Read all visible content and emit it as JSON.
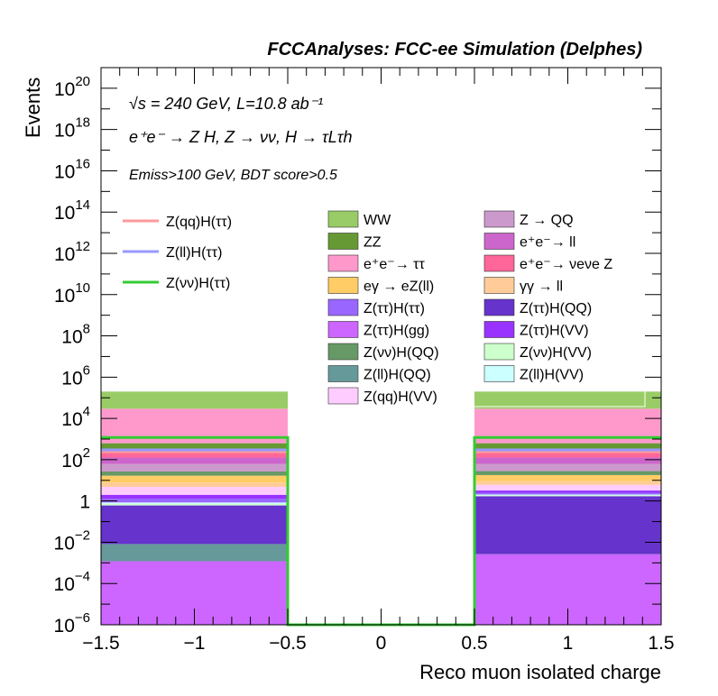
{
  "chart_data": {
    "type": "bar",
    "title": "FCCAnalyses: FCC-ee Simulation (Delphes)",
    "xlabel": "Reco muon isolated charge",
    "ylabel": "Events",
    "xlim": [
      -1.5,
      1.5
    ],
    "ylim": [
      1e-06,
      1e+21
    ],
    "yscale": "log",
    "x_ticks": [
      "−1.5",
      "−1",
      "−0.5",
      "0",
      "0.5",
      "1",
      "1.5"
    ],
    "y_ticks": [
      {
        "base": "10",
        "exp": "−6"
      },
      {
        "base": "10",
        "exp": "−4"
      },
      {
        "base": "10",
        "exp": "−2"
      },
      {
        "base": "1",
        "exp": ""
      },
      {
        "base": "10",
        "exp": "2"
      },
      {
        "base": "10",
        "exp": "4"
      },
      {
        "base": "10",
        "exp": "6"
      },
      {
        "base": "10",
        "exp": "8"
      },
      {
        "base": "10",
        "exp": "10"
      },
      {
        "base": "10",
        "exp": "12"
      },
      {
        "base": "10",
        "exp": "14"
      },
      {
        "base": "10",
        "exp": "16"
      },
      {
        "base": "10",
        "exp": "18"
      },
      {
        "base": "10",
        "exp": "20"
      }
    ],
    "annotations": {
      "line1": "√s = 240 GeV, L=10.8 ab⁻¹",
      "line2": "e⁺e⁻ → Z H, Z → νν, H → τLτh",
      "line3": "Emiss>100 GeV, BDT score>0.5"
    },
    "bins": [
      {
        "xlow": -1.5,
        "xhigh": -0.5
      },
      {
        "xlow": 0.5,
        "xhigh": 1.5
      }
    ],
    "stack": [
      {
        "name": "Z(ττ)H(gg)",
        "color": "#cc66ff",
        "values": [
          0.0012,
          0.0026
        ]
      },
      {
        "name": "Z(ll)H(QQ)",
        "color": "#669999",
        "values": [
          0.007,
          5e-05
        ]
      },
      {
        "name": "Z(ττ)H(QQ)",
        "color": "#6633cc",
        "values": [
          0.6,
          1.7
        ]
      },
      {
        "name": "Z(νν)H(VV)",
        "color": "#ccffcc",
        "values": [
          0.12,
          0.18
        ]
      },
      {
        "name": "Z(ll)H(VV)",
        "color": "#ccffff",
        "values": [
          0.12,
          0.18
        ]
      },
      {
        "name": "Z(ττ)H(ττ)",
        "color": "#9966ff",
        "values": [
          0.45,
          0.45
        ]
      },
      {
        "name": "Z(ττ)H(VV)",
        "color": "#9933ff",
        "values": [
          0.7,
          0.7
        ]
      },
      {
        "name": "Z(qq)H(VV)",
        "color": "#ffccff",
        "values": [
          2.8,
          2.8
        ]
      },
      {
        "name": "γγ → ll",
        "color": "#ffcc99",
        "values": [
          3.0,
          3.0
        ]
      },
      {
        "name": "eγ → eZ(ll)",
        "color": "#ffcc66",
        "values": [
          9.0,
          9.0
        ]
      },
      {
        "name": "Z(νν)H(QQ)",
        "color": "#669966",
        "values": [
          10.0,
          10.0
        ]
      },
      {
        "name": "Z → QQ",
        "color": "#cc99cc",
        "values": [
          35,
          35
        ]
      },
      {
        "name": "e⁺e⁻→ ll",
        "color": "#cc66cc",
        "values": [
          65,
          65
        ]
      },
      {
        "name": "e⁺e⁻→ νeνe Z",
        "color": "#ff6699",
        "values": [
          180,
          180
        ]
      },
      {
        "name": "ZZ",
        "color": "#669933",
        "values": [
          320,
          320
        ]
      },
      {
        "name": "e⁺e⁻→ ττ",
        "color": "#ff99cc",
        "values": [
          29000,
          29000
        ]
      },
      {
        "name": "WW",
        "color": "#99cc66",
        "values": [
          170000,
          170000
        ]
      }
    ],
    "signals": [
      {
        "name": "Z(qq)H(ττ)",
        "color": "#ff9999",
        "values": [
          240,
          240
        ]
      },
      {
        "name": "Z(ll)H(ττ)",
        "color": "#9999ff",
        "values": [
          300,
          300
        ]
      },
      {
        "name": "Z(νν)H(ττ)",
        "color": "#33cc33",
        "values": [
          1200,
          1200
        ]
      }
    ],
    "legend_left": [
      "Z(qq)H(ττ)",
      "Z(ll)H(ττ)",
      "Z(νν)H(ττ)"
    ],
    "legend_col1": [
      "WW",
      "ZZ",
      "e⁺e⁻→ ττ",
      "eγ → eZ(ll)",
      "Z(ττ)H(ττ)",
      "Z(ττ)H(gg)",
      "Z(νν)H(QQ)",
      "Z(ll)H(QQ)",
      "Z(qq)H(VV)"
    ],
    "legend_col2": [
      "Z → QQ",
      "e⁺e⁻→ ll",
      "e⁺e⁻→ νeνe Z",
      "γγ → ll",
      "Z(ττ)H(QQ)",
      "Z(ττ)H(VV)",
      "Z(νν)H(VV)",
      "Z(ll)H(VV)"
    ]
  }
}
